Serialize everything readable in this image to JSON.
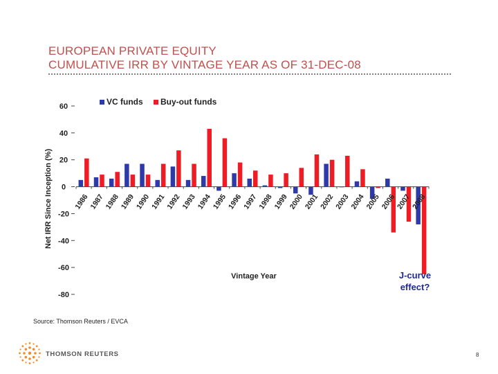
{
  "title": {
    "line1": "EUROPEAN PRIVATE EQUITY",
    "line2": "CUMULATIVE IRR BY VINTAGE YEAR AS OF 31-DEC-08"
  },
  "chart_data": {
    "type": "bar",
    "xlabel": "Vintage Year",
    "ylabel": "Net IRR Since Inception (%)",
    "ylim": [
      -80,
      60
    ],
    "yticks": [
      60,
      40,
      20,
      0,
      -20,
      -40,
      -60,
      -80
    ],
    "categories": [
      "1986",
      "1987",
      "1988",
      "1989",
      "1990",
      "1991",
      "1992",
      "1993",
      "1994",
      "1995",
      "1996",
      "1997",
      "1998",
      "1999",
      "2000",
      "2001",
      "2002",
      "2003",
      "2004",
      "2005",
      "2006",
      "2007",
      "2008"
    ],
    "series": [
      {
        "name": "VC funds",
        "color": "#2e3aa8",
        "values": [
          5,
          7,
          6,
          17,
          17,
          5,
          15,
          5,
          8,
          -3,
          10,
          6,
          1,
          -1,
          -5,
          -6,
          17,
          0,
          4,
          -9,
          6,
          -3,
          -28
        ]
      },
      {
        "name": "Buy-out funds",
        "color": "#ee1c24",
        "values": [
          21,
          9,
          11,
          9,
          9,
          17,
          27,
          17,
          43,
          36,
          18,
          12,
          9,
          10,
          14,
          24,
          20,
          23,
          13,
          -1,
          -34,
          -26,
          -65
        ]
      }
    ],
    "legend_position": "top",
    "annotation": "J-curve effect?",
    "grid": false
  },
  "source": "Source: Thomson Reuters / EVCA",
  "brand": "THOMSON REUTERS",
  "page_number": "8"
}
